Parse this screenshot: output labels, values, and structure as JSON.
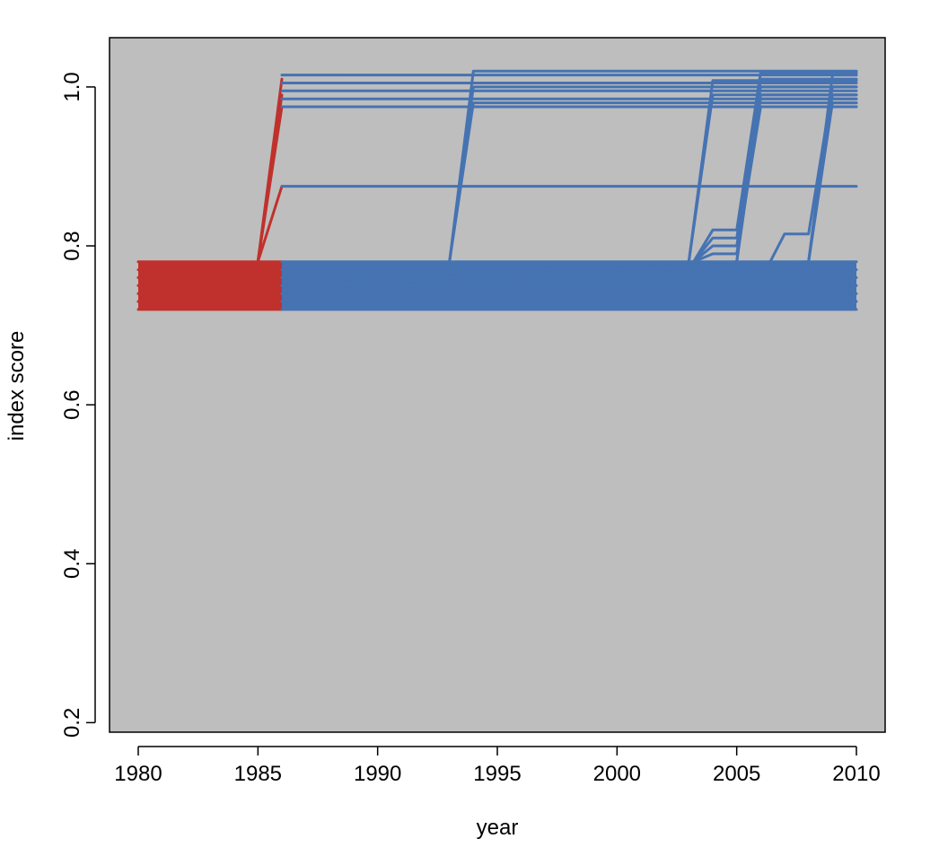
{
  "chart_data": {
    "type": "line",
    "title": "",
    "xlabel": "year",
    "ylabel": "index score",
    "xlim": [
      1978.8,
      2011.2
    ],
    "ylim": [
      0.188,
      1.062
    ],
    "x_ticks": [
      1980,
      1985,
      1990,
      1995,
      2000,
      2005,
      2010
    ],
    "x_tick_labels": [
      "1980",
      "1985",
      "1990",
      "1995",
      "2000",
      "2005",
      "2010"
    ],
    "y_ticks": [
      0.2,
      0.4,
      0.6,
      0.8,
      1.0
    ],
    "y_tick_labels": [
      "0.2",
      "0.4",
      "0.6",
      "0.8",
      "1.0"
    ],
    "grid": false,
    "legend": "none",
    "colors": {
      "plot_background": "#bebebe",
      "early_period": "#c0312d",
      "late_period": "#4673b2"
    },
    "series": [
      {
        "period": "early",
        "color": "#c0312d",
        "x": [
          1980,
          1985,
          1986
        ],
        "y": [
          0.75,
          0.78,
          1.01
        ]
      },
      {
        "period": "early",
        "color": "#c0312d",
        "x": [
          1980,
          1985,
          1986
        ],
        "y": [
          0.74,
          0.78,
          0.99
        ]
      },
      {
        "period": "early",
        "color": "#c0312d",
        "x": [
          1980,
          1985,
          1986
        ],
        "y": [
          0.76,
          0.78,
          0.975
        ]
      },
      {
        "period": "early",
        "color": "#c0312d",
        "x": [
          1980,
          1985,
          1986
        ],
        "y": [
          0.73,
          0.78,
          0.875
        ]
      },
      {
        "period": "early",
        "color": "#c0312d",
        "x": [
          1980,
          1986
        ],
        "y": [
          0.72,
          0.72
        ]
      },
      {
        "period": "early",
        "color": "#c0312d",
        "x": [
          1980,
          1986
        ],
        "y": [
          0.73,
          0.73
        ]
      },
      {
        "period": "early",
        "color": "#c0312d",
        "x": [
          1980,
          1986
        ],
        "y": [
          0.74,
          0.74
        ]
      },
      {
        "period": "early",
        "color": "#c0312d",
        "x": [
          1980,
          1986
        ],
        "y": [
          0.75,
          0.75
        ]
      },
      {
        "period": "early",
        "color": "#c0312d",
        "x": [
          1980,
          1986
        ],
        "y": [
          0.76,
          0.76
        ]
      },
      {
        "period": "early",
        "color": "#c0312d",
        "x": [
          1980,
          1986
        ],
        "y": [
          0.77,
          0.77
        ]
      },
      {
        "period": "early",
        "color": "#c0312d",
        "x": [
          1980,
          1986
        ],
        "y": [
          0.78,
          0.78
        ]
      },
      {
        "period": "late",
        "color": "#4673b2",
        "x": [
          1986,
          2010
        ],
        "y": [
          1.015,
          1.015
        ]
      },
      {
        "period": "late",
        "color": "#4673b2",
        "x": [
          1986,
          2010
        ],
        "y": [
          1.005,
          1.005
        ]
      },
      {
        "period": "late",
        "color": "#4673b2",
        "x": [
          1986,
          2010
        ],
        "y": [
          0.995,
          0.995
        ]
      },
      {
        "period": "late",
        "color": "#4673b2",
        "x": [
          1986,
          2010
        ],
        "y": [
          0.985,
          0.985
        ]
      },
      {
        "period": "late",
        "color": "#4673b2",
        "x": [
          1986,
          2010
        ],
        "y": [
          0.975,
          0.975
        ]
      },
      {
        "period": "late",
        "color": "#4673b2",
        "x": [
          1986,
          2010
        ],
        "y": [
          0.875,
          0.875
        ]
      },
      {
        "period": "late",
        "color": "#4673b2",
        "x": [
          1986,
          1993,
          1994,
          2010
        ],
        "y": [
          0.75,
          0.78,
          1.02,
          1.02
        ]
      },
      {
        "period": "late",
        "color": "#4673b2",
        "x": [
          1986,
          1993,
          1994,
          2010
        ],
        "y": [
          0.74,
          0.78,
          1.0,
          1.0
        ]
      },
      {
        "period": "late",
        "color": "#4673b2",
        "x": [
          1986,
          1993,
          1994,
          2010
        ],
        "y": [
          0.76,
          0.78,
          0.98,
          0.98
        ]
      },
      {
        "period": "late",
        "color": "#4673b2",
        "x": [
          1986,
          2003,
          2004,
          2010
        ],
        "y": [
          0.75,
          0.78,
          1.008,
          1.008
        ]
      },
      {
        "period": "late",
        "color": "#4673b2",
        "x": [
          1986,
          2003,
          2004,
          2010
        ],
        "y": [
          0.74,
          0.78,
          0.99,
          0.99
        ]
      },
      {
        "period": "late",
        "color": "#4673b2",
        "x": [
          1986,
          2003.2,
          2004,
          2005,
          2006,
          2010
        ],
        "y": [
          0.75,
          0.78,
          0.82,
          0.82,
          1.018,
          1.018
        ]
      },
      {
        "period": "late",
        "color": "#4673b2",
        "x": [
          1986,
          2003.2,
          2004,
          2005,
          2006,
          2010
        ],
        "y": [
          0.74,
          0.78,
          0.81,
          0.81,
          1.0,
          1.0
        ]
      },
      {
        "period": "late",
        "color": "#4673b2",
        "x": [
          1986,
          2003.2,
          2004,
          2005,
          2006,
          2010
        ],
        "y": [
          0.76,
          0.78,
          0.8,
          0.8,
          0.985,
          0.985
        ]
      },
      {
        "period": "late",
        "color": "#4673b2",
        "x": [
          1986,
          2003.2,
          2004,
          2005,
          2006,
          2010
        ],
        "y": [
          0.73,
          0.78,
          0.79,
          0.79,
          0.975,
          0.975
        ]
      },
      {
        "period": "late",
        "color": "#4673b2",
        "x": [
          1986,
          2005,
          2006,
          2010
        ],
        "y": [
          0.75,
          0.78,
          1.01,
          1.01
        ]
      },
      {
        "period": "late",
        "color": "#4673b2",
        "x": [
          1986,
          2005,
          2006,
          2010
        ],
        "y": [
          0.74,
          0.78,
          0.99,
          0.99
        ]
      },
      {
        "period": "late",
        "color": "#4673b2",
        "x": [
          1986,
          2006.4,
          2007,
          2008,
          2009,
          2010
        ],
        "y": [
          0.75,
          0.78,
          0.815,
          0.815,
          1.0,
          1.0
        ]
      },
      {
        "period": "late",
        "color": "#4673b2",
        "x": [
          1986,
          2008,
          2009,
          2010
        ],
        "y": [
          0.75,
          0.78,
          0.98,
          0.98
        ]
      },
      {
        "period": "late",
        "color": "#4673b2",
        "x": [
          1986,
          2008,
          2009,
          2010
        ],
        "y": [
          0.74,
          0.78,
          1.015,
          1.015
        ]
      },
      {
        "period": "late",
        "color": "#4673b2",
        "x": [
          1986,
          2008,
          2009,
          2010
        ],
        "y": [
          0.76,
          0.78,
          0.99,
          0.99
        ]
      },
      {
        "period": "late",
        "color": "#4673b2",
        "x": [
          1986,
          2010
        ],
        "y": [
          0.72,
          0.72
        ]
      },
      {
        "period": "late",
        "color": "#4673b2",
        "x": [
          1986,
          2010
        ],
        "y": [
          0.73,
          0.73
        ]
      },
      {
        "period": "late",
        "color": "#4673b2",
        "x": [
          1986,
          2010
        ],
        "y": [
          0.74,
          0.74
        ]
      },
      {
        "period": "late",
        "color": "#4673b2",
        "x": [
          1986,
          2010
        ],
        "y": [
          0.75,
          0.75
        ]
      },
      {
        "period": "late",
        "color": "#4673b2",
        "x": [
          1986,
          2010
        ],
        "y": [
          0.76,
          0.76
        ]
      },
      {
        "period": "late",
        "color": "#4673b2",
        "x": [
          1986,
          2010
        ],
        "y": [
          0.77,
          0.77
        ]
      },
      {
        "period": "late",
        "color": "#4673b2",
        "x": [
          1986,
          2010
        ],
        "y": [
          0.78,
          0.78
        ]
      }
    ],
    "bands": [
      {
        "color": "#c0312d",
        "x": [
          1980,
          1986
        ],
        "y": [
          0.72,
          0.78
        ]
      },
      {
        "color": "#4673b2",
        "x": [
          1986,
          2010
        ],
        "y": [
          0.72,
          0.78
        ]
      }
    ]
  }
}
